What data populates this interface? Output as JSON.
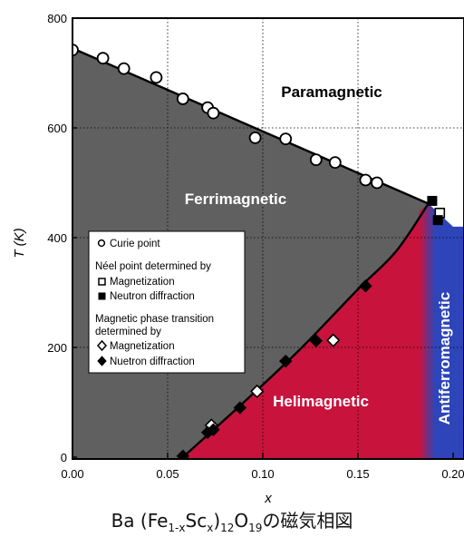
{
  "caption": {
    "base": "Ba (Fe",
    "sub1": "1-x",
    "mid": "Sc",
    "sub2": "x",
    "close": ")",
    "sub3": "12",
    "o": "O",
    "sub4": "19",
    "tail": "の磁気相図"
  },
  "colors": {
    "ferri": "#606060",
    "heli": "#c8143c",
    "antiferro": "#2d45b8",
    "boundary": "#000000",
    "grid": "#000000",
    "region_text_light": "#ffffff",
    "region_text_dark": "#000000"
  },
  "chart_data": {
    "type": "scatter",
    "xlabel": "x",
    "ylabel": "T (K)",
    "xlim": [
      0.0,
      0.2
    ],
    "ylim": [
      0,
      800
    ],
    "xticks": [
      "0.00",
      "0.05",
      "0.10",
      "0.15",
      "0.20"
    ],
    "yticks": [
      "0",
      "200",
      "400",
      "600",
      "800"
    ],
    "grid": "dotted",
    "regions": [
      {
        "name": "Paramagnetic"
      },
      {
        "name": "Ferrimagnetic"
      },
      {
        "name": "Helimagnetic"
      },
      {
        "name": "Antiferromagnetic"
      }
    ],
    "legend": {
      "entries": [
        {
          "label": "Curie point",
          "marker": "open-circle"
        },
        {
          "label": "Néel point determined by",
          "marker": "none"
        },
        {
          "label": "Magnetization",
          "marker": "open-square"
        },
        {
          "label": "Neutron diffraction",
          "marker": "filled-square"
        },
        {
          "label": "Magnetic phase transition",
          "marker": "none"
        },
        {
          "label": "determined by",
          "marker": "none"
        },
        {
          "label": "Magnetization",
          "marker": "open-diamond"
        },
        {
          "label": "Nuetron diffraction",
          "marker": "filled-diamond"
        }
      ],
      "placement": "center-left"
    },
    "series": [
      {
        "marker": "open-circle",
        "x": [
          0.0,
          0.016,
          0.027,
          0.044,
          0.058,
          0.071,
          0.074,
          0.096,
          0.112,
          0.128,
          0.138,
          0.154,
          0.16
        ],
        "y": [
          742,
          727,
          708,
          692,
          653,
          637,
          627,
          582,
          580,
          542,
          537,
          505,
          500
        ]
      },
      {
        "marker": "open-square",
        "x": [
          0.193
        ],
        "y": [
          445
        ]
      },
      {
        "marker": "filled-square",
        "x": [
          0.189,
          0.192
        ],
        "y": [
          467,
          432
        ]
      },
      {
        "marker": "open-diamond",
        "x": [
          0.073,
          0.097,
          0.137
        ],
        "y": [
          58,
          120,
          213
        ]
      },
      {
        "marker": "filled-diamond",
        "x": [
          0.058,
          0.071,
          0.074,
          0.088,
          0.112,
          0.128,
          0.154
        ],
        "y": [
          2,
          45,
          50,
          90,
          175,
          212,
          312
        ]
      }
    ],
    "boundaries": [
      {
        "name": "Curie line",
        "x": [
          0.0,
          0.187
        ],
        "y": [
          745,
          462
        ]
      },
      {
        "name": "Helimagnetic boundary",
        "x": [
          0.058,
          0.09,
          0.12,
          0.15,
          0.17,
          0.187,
          0.2
        ],
        "y": [
          0,
          100,
          198,
          306,
          375,
          462,
          420
        ]
      }
    ]
  }
}
